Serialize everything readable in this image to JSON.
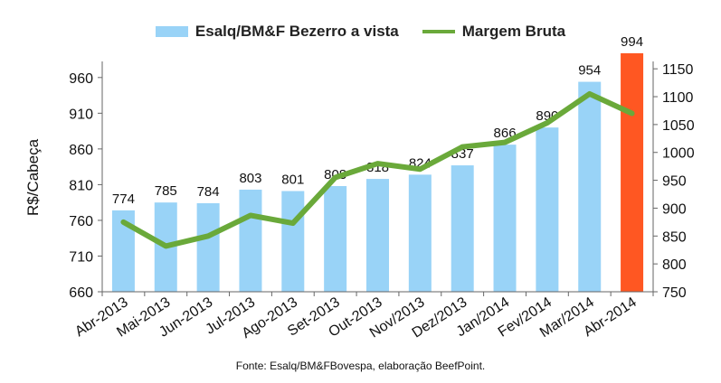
{
  "legend": {
    "bar_label": "Esalq/BM&F Bezerro a vista",
    "line_label": "Margem Bruta"
  },
  "source_note": "Fonte:  Esalq/BM&FBovespa,  elaboração  BeefPoint.",
  "chart_data": {
    "type": "bar",
    "categories": [
      "Abr-2013",
      "Mai-2013",
      "Jun-2013",
      "Jul-2013",
      "Ago-2013",
      "Set-2013",
      "Out-2013",
      "Nov/2013",
      "Dez/2013",
      "Jan/2014",
      "Fev/2014",
      "Mar/2014",
      "Abr-2014"
    ],
    "ylabel": "R$/Cabeça",
    "ylim": [
      660,
      980
    ],
    "y_ticks": [
      660,
      710,
      760,
      810,
      860,
      910,
      960
    ],
    "y2lim": [
      750,
      1160
    ],
    "y2_ticks": [
      750,
      800,
      850,
      900,
      950,
      1000,
      1050,
      1100,
      1150
    ],
    "series": [
      {
        "name": "Esalq/BM&F Bezerro a vista",
        "kind": "bar",
        "axis": "left",
        "values": [
          774,
          785,
          784,
          803,
          801,
          808,
          818,
          824,
          837,
          866,
          890,
          954,
          994
        ],
        "color": "#99d3f7",
        "highlight_last_color": "#ff5722"
      },
      {
        "name": "Margem Bruta",
        "kind": "line",
        "axis": "right",
        "values": [
          875,
          832,
          850,
          887,
          873,
          955,
          980,
          970,
          1010,
          1018,
          1053,
          1105,
          1070
        ],
        "color": "#6aa93a"
      }
    ],
    "grid": false,
    "legend_position": "top"
  }
}
